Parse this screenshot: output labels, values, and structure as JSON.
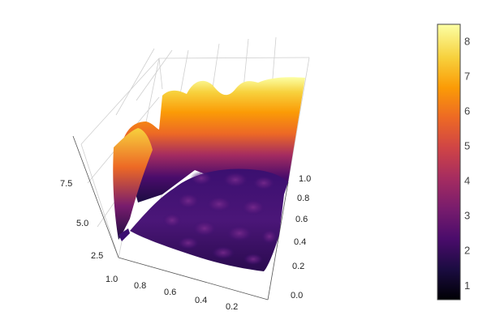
{
  "chart_data": {
    "type": "surface3d",
    "title": "",
    "colorscale": "inferno",
    "colorscale_stops": [
      "#000004",
      "#1b0c41",
      "#4a0c6b",
      "#781c6d",
      "#a52c60",
      "#cf4446",
      "#ed6925",
      "#fb9b06",
      "#f7d13d",
      "#fcffa4"
    ],
    "x_axis": {
      "label": "",
      "range": [
        0,
        1
      ],
      "ticks": [
        "1.0",
        "0.8",
        "0.6",
        "0.4",
        "0.2"
      ]
    },
    "y_axis": {
      "label": "",
      "range": [
        0,
        1
      ],
      "ticks": [
        "0.0",
        "0.2",
        "0.4",
        "0.6",
        "0.8",
        "1.0"
      ]
    },
    "z_axis": {
      "label": "",
      "range": [
        0.6,
        8.5
      ],
      "ticks": [
        "2.5",
        "5.0",
        "7.5"
      ]
    },
    "colorbar": {
      "range": [
        0.6,
        8.5
      ],
      "ticks": [
        "1",
        "2",
        "3",
        "4",
        "5",
        "6",
        "7",
        "8"
      ]
    },
    "surface": {
      "back_edge_height_profile": [
        7.5,
        7.9,
        8.0,
        7.6,
        7.4,
        7.7,
        8.1,
        7.8,
        8.2,
        8.4
      ],
      "left_edge_height_profile": [
        8.0,
        6.5,
        4.0,
        2.0,
        1.8,
        3.5,
        6.0
      ],
      "front_flat_level": 2.0
    }
  }
}
